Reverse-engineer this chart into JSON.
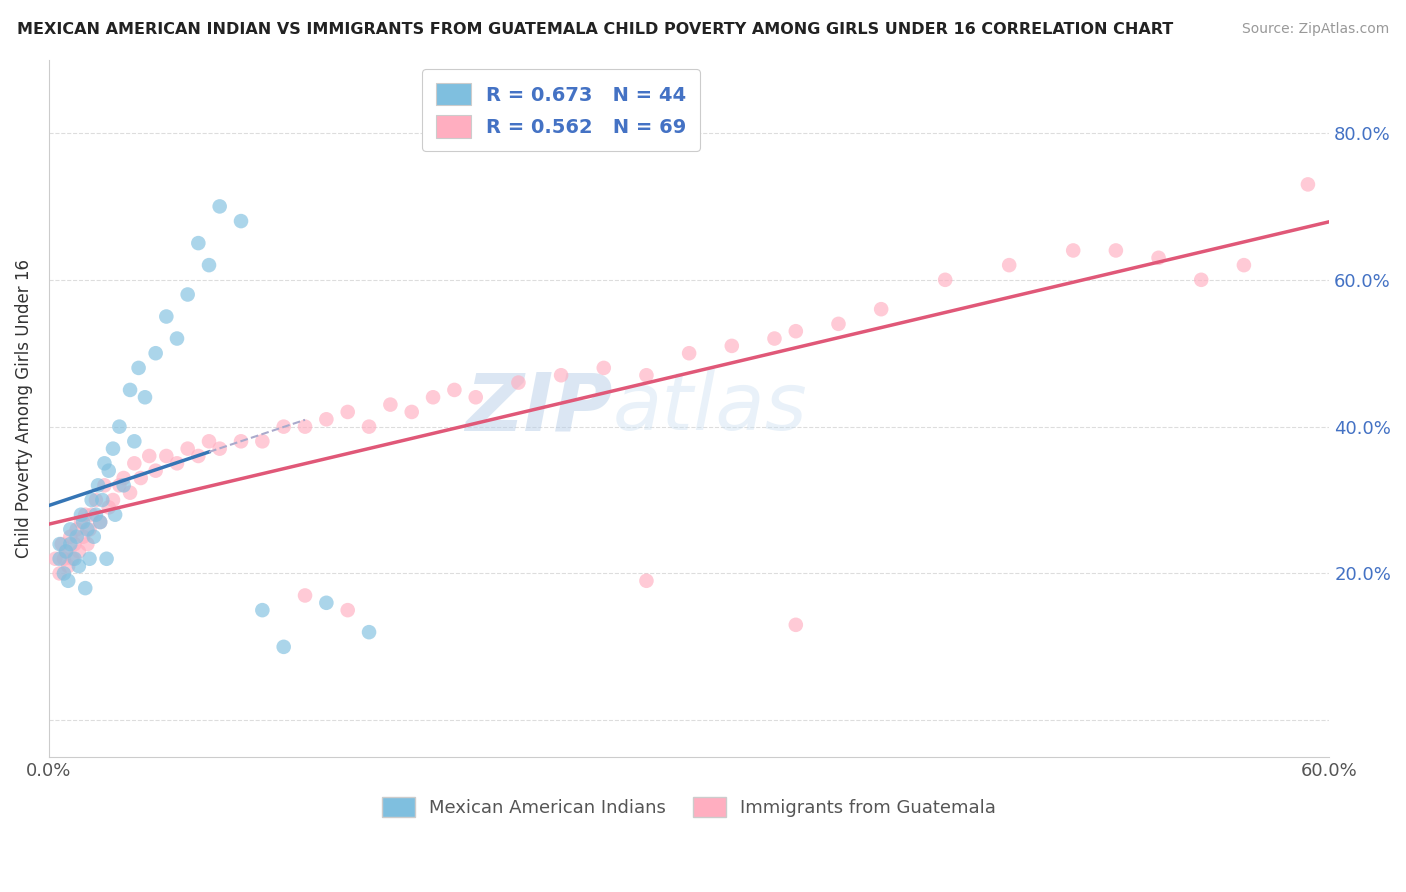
{
  "title": "MEXICAN AMERICAN INDIAN VS IMMIGRANTS FROM GUATEMALA CHILD POVERTY AMONG GIRLS UNDER 16 CORRELATION CHART",
  "source": "Source: ZipAtlas.com",
  "ylabel": "Child Poverty Among Girls Under 16",
  "xlim": [
    0.0,
    0.6
  ],
  "ylim": [
    -0.05,
    0.9
  ],
  "ytick_vals": [
    0.0,
    0.2,
    0.4,
    0.6,
    0.8
  ],
  "ytick_labels": [
    "",
    "20.0%",
    "40.0%",
    "60.0%",
    "80.0%"
  ],
  "xtick_vals": [
    0.0,
    0.1,
    0.2,
    0.3,
    0.4,
    0.5,
    0.6
  ],
  "xtick_labels": [
    "0.0%",
    "",
    "",
    "",
    "",
    "",
    "60.0%"
  ],
  "legend_label1": "Mexican American Indians",
  "legend_label2": "Immigrants from Guatemala",
  "color_blue": "#7fbfdf",
  "color_pink": "#ffaec0",
  "color_blue_line": "#3575b5",
  "color_pink_line": "#e05878",
  "watermark_zip": "ZIP",
  "watermark_atlas": "atlas",
  "blue_x": [
    0.005,
    0.005,
    0.007,
    0.008,
    0.009,
    0.01,
    0.01,
    0.012,
    0.013,
    0.014,
    0.015,
    0.016,
    0.017,
    0.018,
    0.019,
    0.02,
    0.021,
    0.022,
    0.023,
    0.024,
    0.025,
    0.026,
    0.027,
    0.028,
    0.03,
    0.031,
    0.033,
    0.035,
    0.038,
    0.04,
    0.042,
    0.045,
    0.05,
    0.055,
    0.06,
    0.065,
    0.07,
    0.075,
    0.08,
    0.09,
    0.1,
    0.11,
    0.13,
    0.15
  ],
  "blue_y": [
    0.22,
    0.24,
    0.2,
    0.23,
    0.19,
    0.24,
    0.26,
    0.22,
    0.25,
    0.21,
    0.28,
    0.27,
    0.18,
    0.26,
    0.22,
    0.3,
    0.25,
    0.28,
    0.32,
    0.27,
    0.3,
    0.35,
    0.22,
    0.34,
    0.37,
    0.28,
    0.4,
    0.32,
    0.45,
    0.38,
    0.48,
    0.44,
    0.5,
    0.55,
    0.52,
    0.58,
    0.65,
    0.62,
    0.7,
    0.68,
    0.15,
    0.1,
    0.16,
    0.12
  ],
  "pink_x": [
    0.003,
    0.005,
    0.006,
    0.007,
    0.008,
    0.009,
    0.01,
    0.011,
    0.012,
    0.013,
    0.014,
    0.015,
    0.016,
    0.017,
    0.018,
    0.019,
    0.02,
    0.022,
    0.024,
    0.026,
    0.028,
    0.03,
    0.033,
    0.035,
    0.038,
    0.04,
    0.043,
    0.047,
    0.05,
    0.055,
    0.06,
    0.065,
    0.07,
    0.075,
    0.08,
    0.09,
    0.1,
    0.11,
    0.12,
    0.13,
    0.14,
    0.15,
    0.16,
    0.17,
    0.18,
    0.19,
    0.2,
    0.22,
    0.24,
    0.26,
    0.28,
    0.3,
    0.32,
    0.34,
    0.35,
    0.37,
    0.39,
    0.42,
    0.45,
    0.48,
    0.5,
    0.52,
    0.54,
    0.56,
    0.59,
    0.12,
    0.14,
    0.28,
    0.35
  ],
  "pink_y": [
    0.22,
    0.2,
    0.24,
    0.22,
    0.23,
    0.21,
    0.25,
    0.22,
    0.24,
    0.26,
    0.23,
    0.27,
    0.25,
    0.28,
    0.24,
    0.26,
    0.28,
    0.3,
    0.27,
    0.32,
    0.29,
    0.3,
    0.32,
    0.33,
    0.31,
    0.35,
    0.33,
    0.36,
    0.34,
    0.36,
    0.35,
    0.37,
    0.36,
    0.38,
    0.37,
    0.38,
    0.38,
    0.4,
    0.4,
    0.41,
    0.42,
    0.4,
    0.43,
    0.42,
    0.44,
    0.45,
    0.44,
    0.46,
    0.47,
    0.48,
    0.47,
    0.5,
    0.51,
    0.52,
    0.53,
    0.54,
    0.56,
    0.6,
    0.62,
    0.64,
    0.64,
    0.63,
    0.6,
    0.62,
    0.73,
    0.17,
    0.15,
    0.19,
    0.13
  ]
}
